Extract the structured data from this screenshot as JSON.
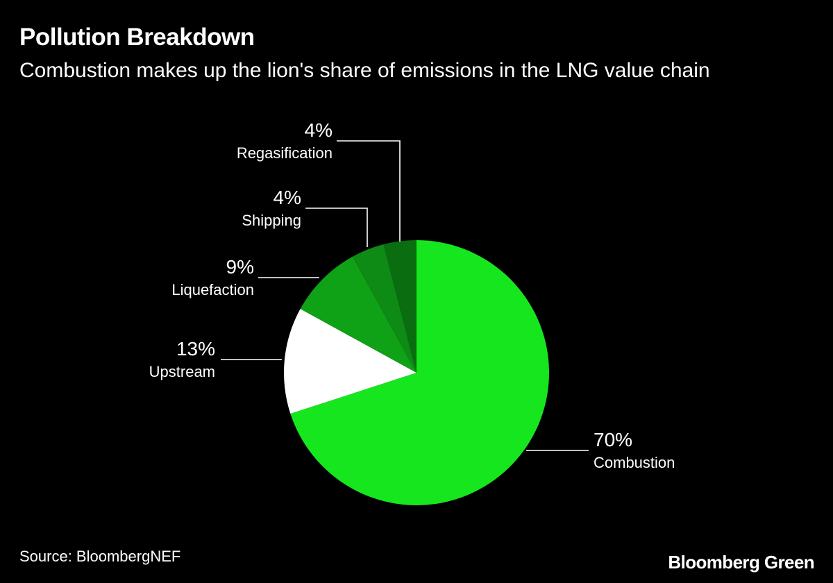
{
  "header": {
    "title": "Pollution Breakdown",
    "subtitle": "Combustion makes up the lion's share of emissions in the LNG value chain"
  },
  "chart_data": {
    "type": "pie",
    "start_angle_deg": 0,
    "direction": "clockwise",
    "slices": [
      {
        "label": "Combustion",
        "value_label": "70%",
        "value": 70,
        "color": "#16e61e"
      },
      {
        "label": "Upstream",
        "value_label": "13%",
        "value": 13,
        "color": "#ffffff"
      },
      {
        "label": "Liquefaction",
        "value_label": "9%",
        "value": 9,
        "color": "#0fa116"
      },
      {
        "label": "Shipping",
        "value_label": "4%",
        "value": 4,
        "color": "#0d8b14"
      },
      {
        "label": "Regasification",
        "value_label": "4%",
        "value": 4,
        "color": "#0a6e11"
      }
    ]
  },
  "footer": {
    "source": "Source: BloombergNEF",
    "brand": "Bloomberg Green"
  },
  "colors": {
    "background": "#000000",
    "text": "#ffffff",
    "leader_line": "#ffffff"
  }
}
